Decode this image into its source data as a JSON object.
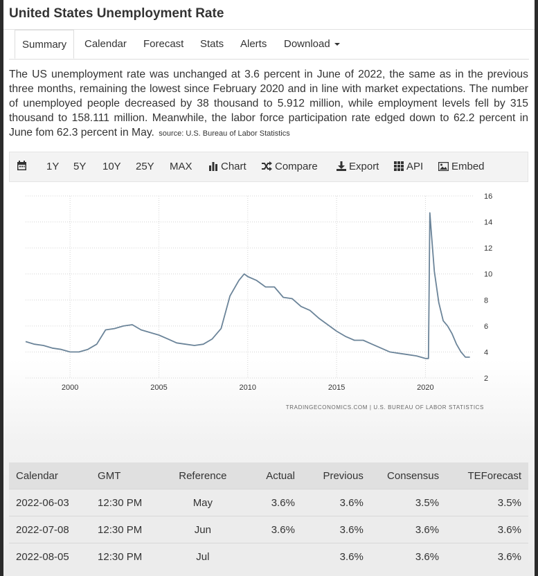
{
  "page": {
    "title": "United States Unemployment Rate"
  },
  "tabs": [
    {
      "label": "Summary",
      "active": true
    },
    {
      "label": "Calendar"
    },
    {
      "label": "Forecast"
    },
    {
      "label": "Stats"
    },
    {
      "label": "Alerts"
    },
    {
      "label": "Download"
    }
  ],
  "description": {
    "text": "The US unemployment rate was unchanged at 3.6 percent in June of 2022, the same as in the previous three months, remaining the lowest since February 2020 and in line with market expectations. The number of unemployed people decreased by 38 thousand to 5.912 million, while employment levels fell by 315 thousand to 158.111 million. Meanwhile, the labor force participation rate edged down to 62.2 percent in June fom 62.3 percent in May.",
    "source": "source: U.S. Bureau of Labor Statistics"
  },
  "toolbar": {
    "ranges": [
      "1Y",
      "5Y",
      "10Y",
      "25Y",
      "MAX"
    ],
    "chart": "Chart",
    "compare": "Compare",
    "export": "Export",
    "api": "API",
    "embed": "Embed",
    "icons": [
      "calendar-icon",
      "bar-chart-icon",
      "shuffle-icon",
      "download-icon",
      "grid-icon",
      "image-icon"
    ]
  },
  "chart_data": {
    "type": "line",
    "title": "",
    "xlabel": "",
    "ylabel": "",
    "xlim": [
      1997.5,
      2022.75
    ],
    "ylim": [
      2,
      16
    ],
    "x_ticks": [
      "2000",
      "2005",
      "2010",
      "2015",
      "2020"
    ],
    "y_ticks": [
      "2",
      "4",
      "6",
      "8",
      "10",
      "12",
      "14",
      "16"
    ],
    "y_axis_position": "right",
    "grid": true,
    "color": "#6b8499",
    "credit": "TRADINGECONOMICS.COM | U.S. BUREAU OF LABOR STATISTICS",
    "series": [
      {
        "x": [
          1997.5,
          1998,
          1998.5,
          1999,
          1999.5,
          2000,
          2000.5,
          2001,
          2001.5,
          2002,
          2002.5,
          2003,
          2003.5,
          2004,
          2004.5,
          2005,
          2005.5,
          2006,
          2006.5,
          2007,
          2007.5,
          2008,
          2008.5,
          2009,
          2009.5,
          2009.8,
          2010,
          2010.5,
          2011,
          2011.5,
          2012,
          2012.5,
          2013,
          2013.5,
          2014,
          2014.5,
          2015,
          2015.5,
          2016,
          2016.5,
          2017,
          2017.5,
          2018,
          2018.5,
          2019,
          2019.5,
          2020.0,
          2020.17,
          2020.25,
          2020.33,
          2020.5,
          2020.75,
          2021,
          2021.25,
          2021.5,
          2021.75,
          2022,
          2022.25,
          2022.5
        ],
        "y": [
          4.8,
          4.6,
          4.5,
          4.3,
          4.2,
          4.0,
          4.0,
          4.2,
          4.6,
          5.7,
          5.8,
          6.0,
          6.1,
          5.7,
          5.5,
          5.3,
          5.0,
          4.7,
          4.6,
          4.5,
          4.6,
          5.0,
          5.8,
          8.3,
          9.5,
          10.0,
          9.8,
          9.5,
          9.0,
          9.0,
          8.2,
          8.1,
          7.5,
          7.2,
          6.6,
          6.1,
          5.6,
          5.2,
          4.9,
          4.9,
          4.6,
          4.3,
          4.0,
          3.9,
          3.8,
          3.7,
          3.5,
          3.5,
          14.7,
          13.2,
          10.2,
          7.8,
          6.4,
          6.0,
          5.4,
          4.6,
          4.0,
          3.6,
          3.6
        ]
      }
    ]
  },
  "calendar": {
    "headers": [
      "Calendar",
      "GMT",
      "Reference",
      "Actual",
      "Previous",
      "Consensus",
      "TEForecast"
    ],
    "rows": [
      [
        "2022-06-03",
        "12:30 PM",
        "May",
        "3.6%",
        "3.6%",
        "3.5%",
        "3.5%"
      ],
      [
        "2022-07-08",
        "12:30 PM",
        "Jun",
        "3.6%",
        "3.6%",
        "3.6%",
        "3.6%"
      ],
      [
        "2022-08-05",
        "12:30 PM",
        "Jul",
        "",
        "3.6%",
        "3.6%",
        "3.6%"
      ]
    ]
  }
}
